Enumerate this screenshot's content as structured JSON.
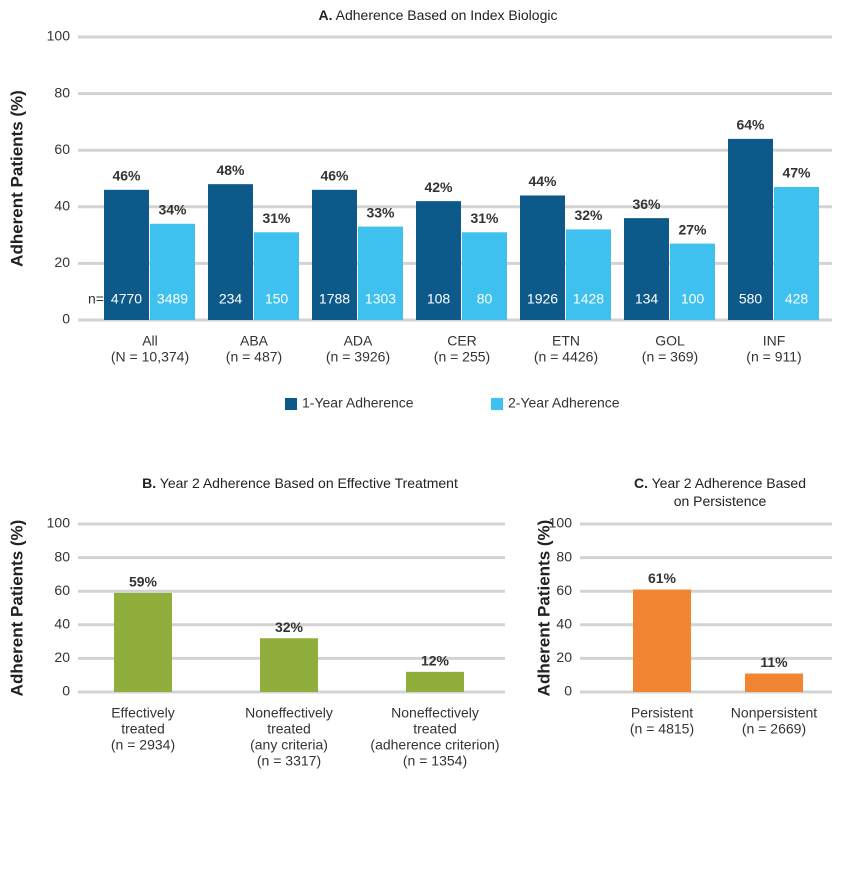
{
  "chart_data": [
    {
      "type": "bar",
      "panel_label": "A.",
      "title": [
        "Adherence Based on Index Biologic"
      ],
      "ylabel": "Adherent Patients (%)",
      "categories": [
        [
          "All",
          "(N = 10,374)"
        ],
        [
          "ABA",
          "(n = 487)"
        ],
        [
          "ADA",
          "(n = 3926)"
        ],
        [
          "CER",
          "(n = 255)"
        ],
        [
          "ETN",
          "(n = 4426)"
        ],
        [
          "GOL",
          "(n = 369)"
        ],
        [
          "INF",
          "(n = 911)"
        ]
      ],
      "n_prefix": "n=",
      "series": [
        {
          "name": "1-Year Adherence",
          "color": "#0d5a8a",
          "values": [
            46,
            48,
            46,
            42,
            44,
            36,
            64
          ],
          "value_labels": [
            "46%",
            "48%",
            "46%",
            "42%",
            "44%",
            "36%",
            "64%"
          ],
          "n": [
            4770,
            234,
            1788,
            108,
            1926,
            134,
            580
          ]
        },
        {
          "name": "2-Year Adherence",
          "color": "#3ec1ee",
          "values": [
            34,
            31,
            33,
            31,
            32,
            27,
            47
          ],
          "value_labels": [
            "34%",
            "31%",
            "33%",
            "31%",
            "32%",
            "27%",
            "47%"
          ],
          "n": [
            3489,
            150,
            1303,
            80,
            1428,
            100,
            428
          ]
        }
      ],
      "ylim": [
        0,
        100
      ],
      "yticks": [
        0,
        20,
        40,
        60,
        80,
        100
      ],
      "grid": true,
      "legend": "bottom"
    },
    {
      "type": "bar",
      "panel_label": "B.",
      "title": [
        "Year 2 Adherence Based on Effective Treatment"
      ],
      "ylabel": "Adherent Patients (%)",
      "categories": [
        [
          "Effectively",
          "treated",
          "(n = 2934)"
        ],
        [
          "Noneffectively",
          "treated",
          "(any criteria)",
          "(n = 3317)"
        ],
        [
          "Noneffectively",
          "treated",
          "(adherence criterion)",
          "(n = 1354)"
        ]
      ],
      "values": [
        59,
        32,
        12
      ],
      "value_labels": [
        "59%",
        "32%",
        "12%"
      ],
      "color": "#8fae3c",
      "ylim": [
        0,
        100
      ],
      "yticks": [
        0,
        20,
        40,
        60,
        80,
        100
      ],
      "grid": true
    },
    {
      "type": "bar",
      "panel_label": "C.",
      "title": [
        "Year 2 Adherence Based",
        "on Persistence"
      ],
      "ylabel": "Adherent Patients (%)",
      "categories": [
        [
          "Persistent",
          "(n = 4815)"
        ],
        [
          "Nonpersistent",
          "(n = 2669)"
        ]
      ],
      "values": [
        61,
        11
      ],
      "value_labels": [
        "61%",
        "11%"
      ],
      "color": "#f28532",
      "ylim": [
        0,
        100
      ],
      "yticks": [
        0,
        20,
        40,
        60,
        80,
        100
      ],
      "grid": true
    }
  ]
}
